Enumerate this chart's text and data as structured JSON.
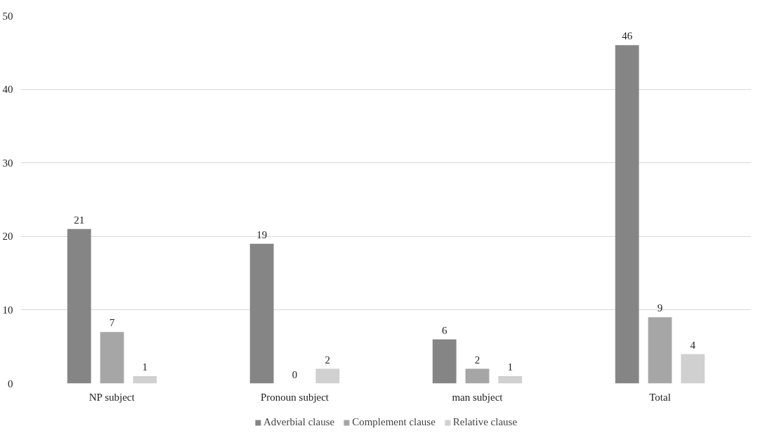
{
  "chart_data": {
    "type": "bar",
    "categories": [
      "NP subject",
      "Pronoun subject",
      "man subject",
      "Total"
    ],
    "series": [
      {
        "name": "Adverbial clause",
        "color": "#858585",
        "values": [
          21,
          19,
          6,
          46
        ]
      },
      {
        "name": "Complement clause",
        "color": "#a6a6a6",
        "values": [
          7,
          0,
          2,
          9
        ]
      },
      {
        "name": "Relative clause",
        "color": "#d0d0d0",
        "values": [
          1,
          2,
          1,
          4
        ]
      }
    ],
    "ylim": [
      0,
      50
    ],
    "yticks": [
      0,
      10,
      20,
      30,
      40,
      50
    ],
    "grid": "y",
    "legend": "bottom",
    "data_labels": true
  }
}
